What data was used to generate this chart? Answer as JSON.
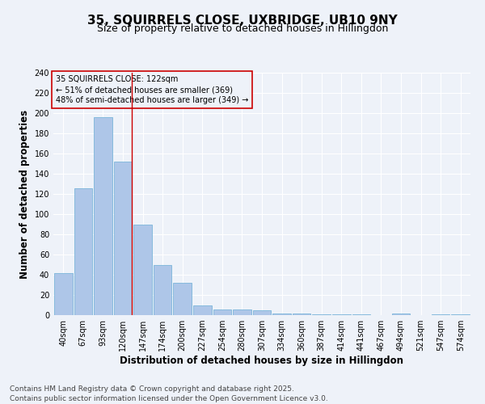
{
  "title": "35, SQUIRRELS CLOSE, UXBRIDGE, UB10 9NY",
  "subtitle": "Size of property relative to detached houses in Hillingdon",
  "xlabel": "Distribution of detached houses by size in Hillingdon",
  "ylabel": "Number of detached properties",
  "categories": [
    "40sqm",
    "67sqm",
    "93sqm",
    "120sqm",
    "147sqm",
    "174sqm",
    "200sqm",
    "227sqm",
    "254sqm",
    "280sqm",
    "307sqm",
    "334sqm",
    "360sqm",
    "387sqm",
    "414sqm",
    "441sqm",
    "467sqm",
    "494sqm",
    "521sqm",
    "547sqm",
    "574sqm"
  ],
  "values": [
    42,
    126,
    196,
    152,
    90,
    50,
    32,
    10,
    6,
    6,
    5,
    2,
    2,
    1,
    1,
    1,
    0,
    2,
    0,
    1,
    1
  ],
  "bar_color": "#aec6e8",
  "bar_edge_color": "#6aaed6",
  "vline_x_index": 3,
  "vline_color": "#cc0000",
  "annotation_title": "35 SQUIRRELS CLOSE: 122sqm",
  "annotation_line1": "← 51% of detached houses are smaller (369)",
  "annotation_line2": "48% of semi-detached houses are larger (349) →",
  "annotation_box_color": "#cc0000",
  "ylim": [
    0,
    240
  ],
  "yticks": [
    0,
    20,
    40,
    60,
    80,
    100,
    120,
    140,
    160,
    180,
    200,
    220,
    240
  ],
  "footer_line1": "Contains HM Land Registry data © Crown copyright and database right 2025.",
  "footer_line2": "Contains public sector information licensed under the Open Government Licence v3.0.",
  "background_color": "#eef2f9",
  "grid_color": "#ffffff",
  "title_fontsize": 11,
  "subtitle_fontsize": 9,
  "axis_label_fontsize": 8.5,
  "tick_fontsize": 7,
  "annotation_fontsize": 7,
  "footer_fontsize": 6.5
}
